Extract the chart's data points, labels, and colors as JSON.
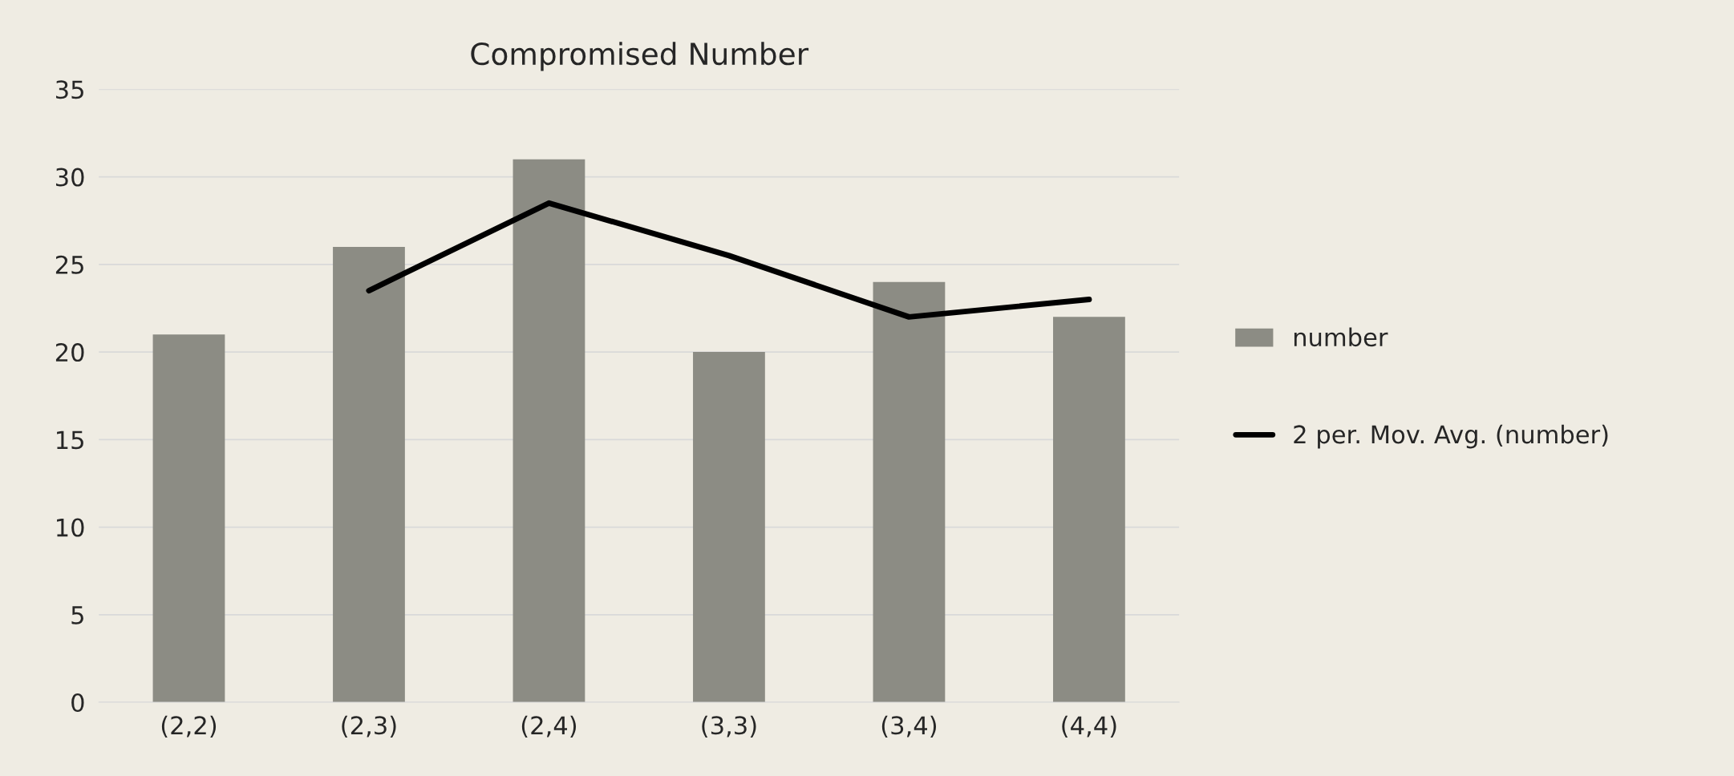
{
  "chart_data": {
    "type": "bar",
    "title": "Compromised Number",
    "categories": [
      "(2,2)",
      "(2,3)",
      "(2,4)",
      "(3,3)",
      "(3,4)",
      "(4,4)"
    ],
    "series": [
      {
        "name": "number",
        "color": "#8c8c84",
        "values": [
          21,
          26,
          31,
          20,
          24,
          22
        ]
      },
      {
        "name": "2 per. Mov. Avg. (number)",
        "type": "line",
        "color": "#000000",
        "values": [
          null,
          23.5,
          28.5,
          25.5,
          22,
          23
        ]
      }
    ],
    "ylim": [
      0,
      35
    ],
    "yticks": [
      0,
      5,
      10,
      15,
      20,
      25,
      30,
      35
    ],
    "grid": "y",
    "legend": "right",
    "marker": "none",
    "line_style": "solid"
  }
}
